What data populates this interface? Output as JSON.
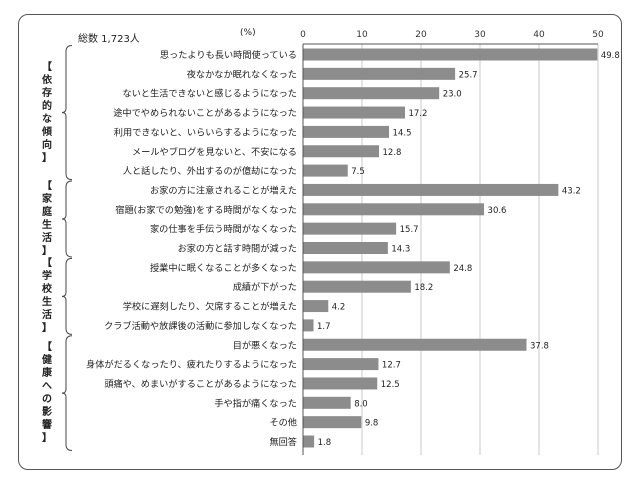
{
  "total": "総数 1,723人",
  "unit": "(%)",
  "groups": [
    {
      "label": "【依存的な傾向】"
    },
    {
      "label": "【家庭生活】"
    },
    {
      "label": "【学校生活】"
    },
    {
      "label": "【健康への影響】"
    }
  ],
  "chart_data": {
    "type": "bar",
    "orientation": "horizontal",
    "xlim": [
      0,
      50
    ],
    "xticks": [
      "0",
      "10",
      "20",
      "30",
      "40",
      "50"
    ],
    "grid": true,
    "bar_color": "#8c8c8c",
    "categories": [
      "思ったよりも長い時間使っている",
      "夜なかなか眠れなくなった",
      "ないと生活できないと感じるようになった",
      "途中でやめられないことがあるようになった",
      "利用できないと、いらいらするようになった",
      "メールやブログを見ないと、不安になる",
      "人と話したり、外出するのが億劫になった",
      "お家の方に注意されることが増えた",
      "宿題(お家での勉強)をする時間がなくなった",
      "家の仕事を手伝う時間がなくなった",
      "お家の方と話す時間が減った",
      "授業中に眠くなることが多くなった",
      "成績が下がった",
      "学校に遅刻したり、欠席することが増えた",
      "クラブ活動や放課後の活動に参加しなくなった",
      "目が悪くなった",
      "身体がだるくなったり、疲れたりするようになった",
      "頭痛や、めまいがすることがあるようになった",
      "手や指が痛くなった",
      "その他",
      "無回答"
    ],
    "values": [
      49.8,
      25.7,
      23.0,
      17.2,
      14.5,
      12.8,
      7.5,
      43.2,
      30.6,
      15.7,
      14.3,
      24.8,
      18.2,
      4.2,
      1.7,
      37.8,
      12.7,
      12.5,
      8.0,
      9.8,
      1.8
    ],
    "value_labels": [
      "49.8",
      "25.7",
      "23.0",
      "17.2",
      "14.5",
      "12.8",
      "7.5",
      "43.2",
      "30.6",
      "15.7",
      "14.3",
      "24.8",
      "18.2",
      "4.2",
      "1.7",
      "37.8",
      "12.7",
      "12.5",
      "8.0",
      "9.8",
      "1.8"
    ]
  }
}
